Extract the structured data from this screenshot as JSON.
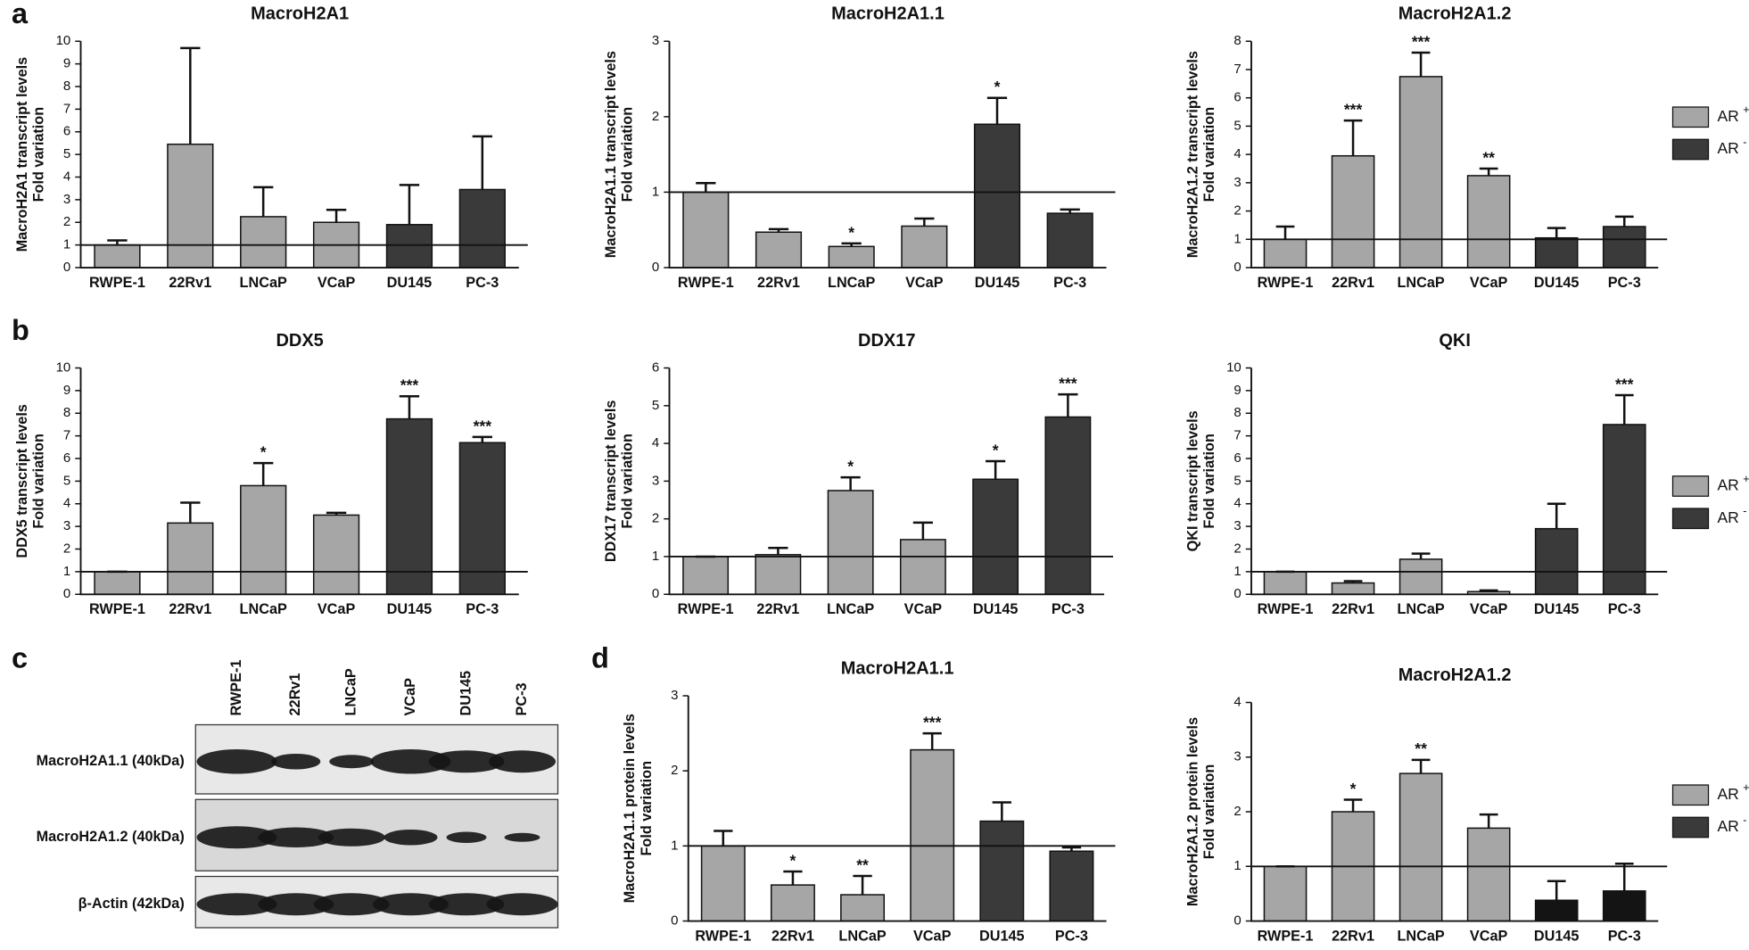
{
  "panels": [
    "a",
    "b",
    "c",
    "d"
  ],
  "legend": [
    {
      "label": "AR",
      "sup": "+",
      "color": "#a6a6a6"
    },
    {
      "label": "AR",
      "sup": "-",
      "color": "#3a3a3a"
    }
  ],
  "blot": {
    "lanes": [
      "RWPE-1",
      "22Rv1",
      "LNCaP",
      "VCaP",
      "DU145",
      "PC-3"
    ],
    "rows": [
      "MacroH2A1.1 (40kDa)",
      "MacroH2A1.2 (40kDa)",
      "β-Actin (42kDa)"
    ]
  },
  "chart_data": [
    {
      "type": "bar",
      "title": "MacroH2A1",
      "ylabel": [
        "MacroH2A1 transcript levels",
        "Fold variation"
      ],
      "categories": [
        "RWPE-1",
        "22Rv1",
        "LNCaP",
        "VCaP",
        "DU145",
        "PC-3"
      ],
      "values": [
        1,
        5.45,
        2.25,
        2.0,
        1.9,
        3.45
      ],
      "errors": [
        0.2,
        4.25,
        1.3,
        0.55,
        1.75,
        2.35
      ],
      "annotations": [
        null,
        null,
        null,
        null,
        null,
        null
      ],
      "colors": [
        "#a6a6a6",
        "#a6a6a6",
        "#a6a6a6",
        "#a6a6a6",
        "#3a3a3a",
        "#3a3a3a"
      ],
      "ylim": [
        0,
        10
      ],
      "yticks": [
        0,
        1,
        2,
        3,
        4,
        5,
        6,
        7,
        8,
        9,
        10
      ],
      "reference_line": 1
    },
    {
      "type": "bar",
      "title": "MacroH2A1.1",
      "ylabel": [
        "MacroH2A1.1 transcript levels",
        "Fold variation"
      ],
      "categories": [
        "RWPE-1",
        "22Rv1",
        "LNCaP",
        "VCaP",
        "DU145",
        "PC-3"
      ],
      "values": [
        1.0,
        0.47,
        0.28,
        0.55,
        1.9,
        0.72
      ],
      "errors": [
        0.12,
        0.04,
        0.04,
        0.1,
        0.35,
        0.05
      ],
      "annotations": [
        null,
        null,
        "*",
        null,
        "*",
        null
      ],
      "colors": [
        "#a6a6a6",
        "#a6a6a6",
        "#a6a6a6",
        "#a6a6a6",
        "#3a3a3a",
        "#3a3a3a"
      ],
      "ylim": [
        0,
        3
      ],
      "yticks": [
        0,
        1,
        2,
        3
      ],
      "reference_line": 1
    },
    {
      "type": "bar",
      "title": "MacroH2A1.2",
      "ylabel": [
        "MacroH2A1.2 transcript levels",
        "Fold variation"
      ],
      "categories": [
        "RWPE-1",
        "22Rv1",
        "LNCaP",
        "VCaP",
        "DU145",
        "PC-3"
      ],
      "values": [
        1.0,
        3.95,
        6.75,
        3.25,
        1.05,
        1.45
      ],
      "errors": [
        0.45,
        1.25,
        0.85,
        0.25,
        0.35,
        0.35
      ],
      "annotations": [
        null,
        "***",
        "***",
        "**",
        null,
        null
      ],
      "colors": [
        "#a6a6a6",
        "#a6a6a6",
        "#a6a6a6",
        "#a6a6a6",
        "#3a3a3a",
        "#3a3a3a"
      ],
      "ylim": [
        0,
        8
      ],
      "yticks": [
        0,
        1,
        2,
        3,
        4,
        5,
        6,
        7,
        8
      ],
      "reference_line": 1
    },
    {
      "type": "bar",
      "title": "DDX5",
      "ylabel": [
        "DDX5 transcript levels",
        "Fold variation"
      ],
      "categories": [
        "RWPE-1",
        "22Rv1",
        "LNCaP",
        "VCaP",
        "DU145",
        "PC-3"
      ],
      "values": [
        1.0,
        3.15,
        4.8,
        3.5,
        7.75,
        6.7
      ],
      "errors": [
        0,
        0.9,
        1.0,
        0.1,
        1.0,
        0.25
      ],
      "annotations": [
        null,
        null,
        "*",
        null,
        "***",
        "***"
      ],
      "colors": [
        "#a6a6a6",
        "#a6a6a6",
        "#a6a6a6",
        "#a6a6a6",
        "#3a3a3a",
        "#3a3a3a"
      ],
      "ylim": [
        0,
        10
      ],
      "yticks": [
        0,
        1,
        2,
        3,
        4,
        5,
        6,
        7,
        8,
        9,
        10
      ],
      "reference_line": 1
    },
    {
      "type": "bar",
      "title": "DDX17",
      "ylabel": [
        "DDX17 transcript levels",
        "Fold variation"
      ],
      "categories": [
        "RWPE-1",
        "22Rv1",
        "LNCaP",
        "VCaP",
        "DU145",
        "PC-3"
      ],
      "values": [
        1.0,
        1.05,
        2.75,
        1.45,
        3.05,
        4.7
      ],
      "errors": [
        0,
        0.18,
        0.35,
        0.45,
        0.48,
        0.6
      ],
      "annotations": [
        null,
        null,
        "*",
        null,
        "*",
        "***"
      ],
      "colors": [
        "#a6a6a6",
        "#a6a6a6",
        "#a6a6a6",
        "#a6a6a6",
        "#3a3a3a",
        "#3a3a3a"
      ],
      "ylim": [
        0,
        6
      ],
      "yticks": [
        0,
        1,
        2,
        3,
        4,
        5,
        6
      ],
      "reference_line": 1
    },
    {
      "type": "bar",
      "title": "QKI",
      "ylabel": [
        "QKI transcript levels",
        "Fold variation"
      ],
      "categories": [
        "RWPE-1",
        "22Rv1",
        "LNCaP",
        "VCaP",
        "DU145",
        "PC-3"
      ],
      "values": [
        1.0,
        0.5,
        1.55,
        0.12,
        2.9,
        7.5
      ],
      "errors": [
        0,
        0.08,
        0.25,
        0.05,
        1.1,
        1.3
      ],
      "annotations": [
        null,
        null,
        null,
        null,
        null,
        "***"
      ],
      "colors": [
        "#a6a6a6",
        "#a6a6a6",
        "#a6a6a6",
        "#a6a6a6",
        "#3a3a3a",
        "#3a3a3a"
      ],
      "ylim": [
        0,
        10
      ],
      "yticks": [
        0,
        1,
        2,
        3,
        4,
        5,
        6,
        7,
        8,
        9,
        10
      ],
      "reference_line": 1
    },
    {
      "type": "bar",
      "title": "MacroH2A1.1",
      "ylabel": [
        "MacroH2A1.1 protein levels",
        "Fold variation"
      ],
      "categories": [
        "RWPE-1",
        "22Rv1",
        "LNCaP",
        "VCaP",
        "DU145",
        "PC-3"
      ],
      "values": [
        1.0,
        0.48,
        0.35,
        2.28,
        1.33,
        0.93
      ],
      "errors": [
        0.2,
        0.18,
        0.25,
        0.22,
        0.25,
        0.05
      ],
      "annotations": [
        null,
        "*",
        "**",
        "***",
        null,
        null
      ],
      "colors": [
        "#a6a6a6",
        "#a6a6a6",
        "#a6a6a6",
        "#a6a6a6",
        "#3a3a3a",
        "#3a3a3a"
      ],
      "ylim": [
        0,
        3
      ],
      "yticks": [
        0,
        1,
        2,
        3
      ],
      "reference_line": 1
    },
    {
      "type": "bar",
      "title": "MacroH2A1.2",
      "ylabel": [
        "MacroH2A1.2 protein levels",
        "Fold variation"
      ],
      "categories": [
        "RWPE-1",
        "22Rv1",
        "LNCaP",
        "VCaP",
        "DU145",
        "PC-3"
      ],
      "values": [
        1.0,
        2.0,
        2.7,
        1.7,
        0.38,
        0.55
      ],
      "errors": [
        0,
        0.22,
        0.25,
        0.25,
        0.35,
        0.5
      ],
      "annotations": [
        null,
        "*",
        "**",
        null,
        null,
        null
      ],
      "colors": [
        "#a6a6a6",
        "#a6a6a6",
        "#a6a6a6",
        "#a6a6a6",
        "#141414",
        "#141414"
      ],
      "ylim": [
        0,
        4
      ],
      "yticks": [
        0,
        1,
        2,
        3,
        4
      ],
      "reference_line": 1
    }
  ]
}
